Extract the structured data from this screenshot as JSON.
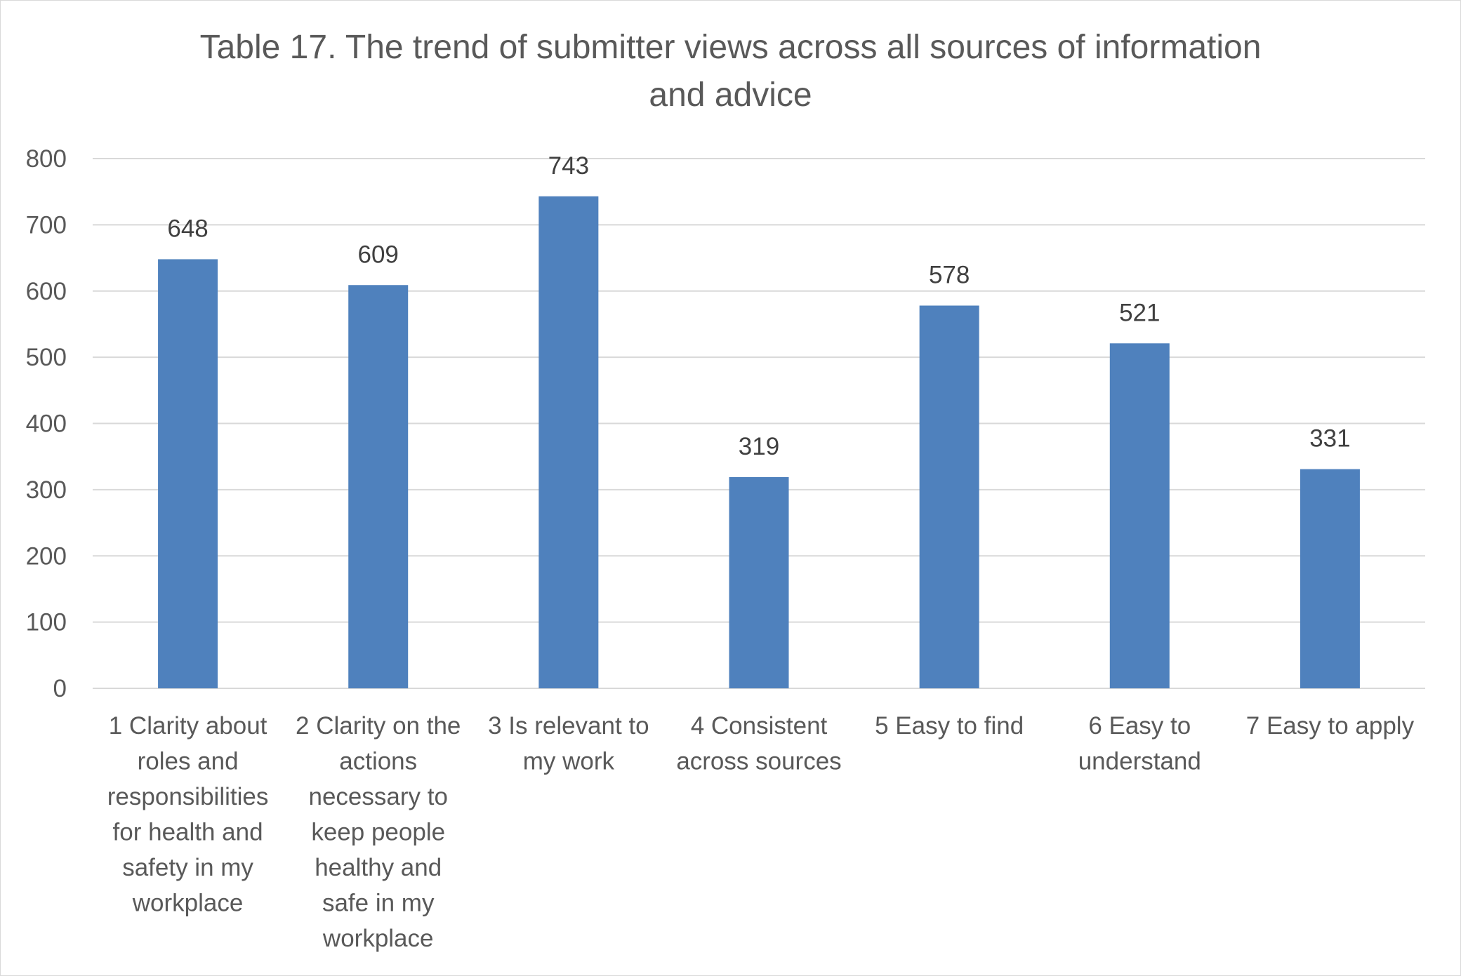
{
  "chart_data": {
    "type": "bar",
    "title_lines": [
      "Table 17. The trend of submitter views across all sources of information",
      "and advice"
    ],
    "categories": [
      [
        "1 Clarity about",
        "roles and",
        "responsibilities",
        "for health and",
        "safety in my",
        "workplace"
      ],
      [
        "2 Clarity on the",
        "actions",
        "necessary to",
        "keep people",
        "healthy and",
        "safe in my",
        "workplace"
      ],
      [
        "3 Is relevant to",
        "my work"
      ],
      [
        "4 Consistent",
        "across sources"
      ],
      [
        "5 Easy to find"
      ],
      [
        "6 Easy to",
        "understand"
      ],
      [
        "7 Easy to apply"
      ]
    ],
    "values": [
      648,
      609,
      743,
      319,
      578,
      521,
      331
    ],
    "data_labels": [
      "648",
      "609",
      "743",
      "319",
      "578",
      "521",
      "331"
    ],
    "y_ticks": [
      "0",
      "100",
      "200",
      "300",
      "400",
      "500",
      "600",
      "700",
      "800"
    ],
    "ylim": [
      0,
      800
    ],
    "grid": true,
    "legend": "none",
    "bar_color": "#4f81bd",
    "grid_color": "#d9d9d9",
    "text_color": "#595959"
  }
}
